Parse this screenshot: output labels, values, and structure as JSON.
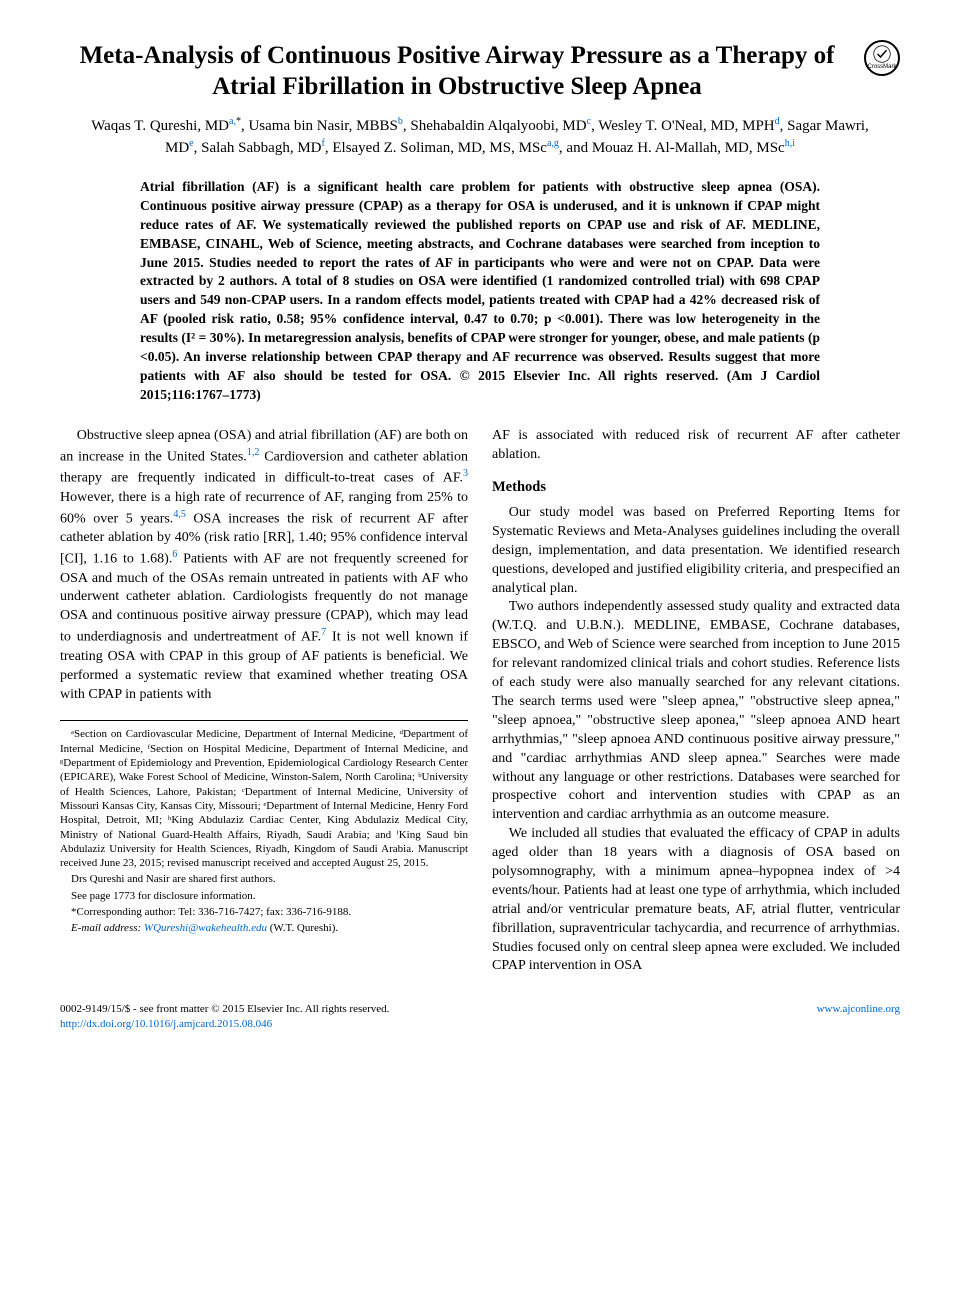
{
  "title": "Meta-Analysis of Continuous Positive Airway Pressure as a Therapy of Atrial Fibrillation in Obstructive Sleep Apnea",
  "crossmark_label": "CrossMark",
  "authors_html": "Waqas T. Qureshi, MD<sup>a,</sup><sup class='sup-star'>*</sup>, Usama bin Nasir, MBBS<sup>b</sup>, Shehabaldin Alqalyoobi, MD<sup>c</sup>, Wesley T. O'Neal, MD, MPH<sup>d</sup>, Sagar Mawri, MD<sup>e</sup>, Salah Sabbagh, MD<sup>f</sup>, Elsayed Z. Soliman, MD, MS, MSc<sup>a,g</sup>, and Mouaz H. Al-Mallah, MD, MSc<sup>h,i</sup>",
  "abstract": "Atrial fibrillation (AF) is a significant health care problem for patients with obstructive sleep apnea (OSA). Continuous positive airway pressure (CPAP) as a therapy for OSA is underused, and it is unknown if CPAP might reduce rates of AF. We systematically reviewed the published reports on CPAP use and risk of AF. MEDLINE, EMBASE, CINAHL, Web of Science, meeting abstracts, and Cochrane databases were searched from inception to June 2015. Studies needed to report the rates of AF in participants who were and were not on CPAP. Data were extracted by 2 authors. A total of 8 studies on OSA were identified (1 randomized controlled trial) with 698 CPAP users and 549 non-CPAP users. In a random effects model, patients treated with CPAP had a 42% decreased risk of AF (pooled risk ratio, 0.58; 95% confidence interval, 0.47 to 0.70; p <0.001). There was low heterogeneity in the results (I² = 30%). In metaregression analysis, benefits of CPAP were stronger for younger, obese, and male patients (p <0.05). An inverse relationship between CPAP therapy and AF recurrence was observed. Results suggest that more patients with AF also should be tested for OSA.    © 2015 Elsevier Inc. All rights reserved. (Am J Cardiol 2015;116:1767–1773)",
  "body": {
    "intro": "Obstructive sleep apnea (OSA) and atrial fibrillation (AF) are both on an increase in the United States.{1,2} Cardioversion and catheter ablation therapy are frequently indicated in difficult-to-treat cases of AF.{3} However, there is a high rate of recurrence of AF, ranging from 25% to 60% over 5 years.{4,5} OSA increases the risk of recurrent AF after catheter ablation by 40% (risk ratio [RR], 1.40; 95% confidence interval [CI], 1.16 to 1.68).{6} Patients with AF are not frequently screened for OSA and much of the OSAs remain untreated in patients with AF who underwent catheter ablation. Cardiologists frequently do not manage OSA and continuous positive airway pressure (CPAP), which may lead to underdiagnosis and undertreatment of AF.{7} It is not well known if treating OSA with CPAP in this group of AF patients is beneficial. We performed a systematic review that examined whether treating OSA with CPAP in patients with",
    "col2_lead": "AF is associated with reduced risk of recurrent AF after catheter ablation.",
    "methods_head": "Methods",
    "methods_p1": "Our study model was based on Preferred Reporting Items for Systematic Reviews and Meta-Analyses guidelines including the overall design, implementation, and data presentation. We identified research questions, developed and justified eligibility criteria, and prespecified an analytical plan.",
    "methods_p2": "Two authors independently assessed study quality and extracted data (W.T.Q. and U.B.N.). MEDLINE, EMBASE, Cochrane databases, EBSCO, and Web of Science were searched from inception to June 2015 for relevant randomized clinical trials and cohort studies. Reference lists of each study were also manually searched for any relevant citations. The search terms used were \"sleep apnea,\" \"obstructive sleep apnea,\" \"sleep apnoea,\" \"obstructive sleep aponea,\" \"sleep apnoea AND heart arrhythmias,\" \"sleep apnoea AND continuous positive airway pressure,\" and \"cardiac arrhythmias AND sleep apnea.\" Searches were made without any language or other restrictions. Databases were searched for prospective cohort and intervention studies with CPAP as an intervention and cardiac arrhythmia as an outcome measure.",
    "methods_p3": "We included all studies that evaluated the efficacy of CPAP in adults aged older than 18 years with a diagnosis of OSA based on polysomnography, with a minimum apnea–hypopnea index of >4 events/hour. Patients had at least one type of arrhythmia, which included atrial and/or ventricular premature beats, AF, atrial flutter, ventricular fibrillation, supraventricular tachycardia, and recurrence of arrhythmias. Studies focused only on central sleep apnea were excluded. We included CPAP intervention in OSA"
  },
  "footnotes": {
    "affiliations": "ᵃSection on Cardiovascular Medicine, Department of Internal Medicine, ᵈDepartment of Internal Medicine, ᶠSection on Hospital Medicine, Department of Internal Medicine, and ᵍDepartment of Epidemiology and Prevention, Epidemiological Cardiology Research Center (EPICARE), Wake Forest School of Medicine, Winston-Salem, North Carolina; ᵇUniversity of Health Sciences, Lahore, Pakistan; ᶜDepartment of Internal Medicine, University of Missouri Kansas City, Kansas City, Missouri; ᵉDepartment of Internal Medicine, Henry Ford Hospital, Detroit, MI; ʰKing Abdulaziz Cardiac Center, King Abdulaziz Medical City, Ministry of National Guard-Health Affairs, Riyadh, Saudi Arabia; and ⁱKing Saud bin Abdulaziz University for Health Sciences, Riyadh, Kingdom of Saudi Arabia. Manuscript received June 23, 2015; revised manuscript received and accepted August 25, 2015.",
    "shared": "Drs Qureshi and Nasir are shared first authors.",
    "disclosure": "See page 1773 for disclosure information.",
    "corresp": "*Corresponding author: Tel: 336-716-7427; fax: 336-716-9188.",
    "email_label": "E-mail address:",
    "email": "WQureshi@wakehealth.edu",
    "email_tail": "(W.T. Qureshi)."
  },
  "footer": {
    "left_line1": "0002-9149/15/$ - see front matter © 2015 Elsevier Inc. All rights reserved.",
    "doi": "http://dx.doi.org/10.1016/j.amjcard.2015.08.046",
    "right": "www.ajconline.org"
  },
  "colors": {
    "link": "#0066cc",
    "text": "#000000",
    "background": "#ffffff"
  }
}
